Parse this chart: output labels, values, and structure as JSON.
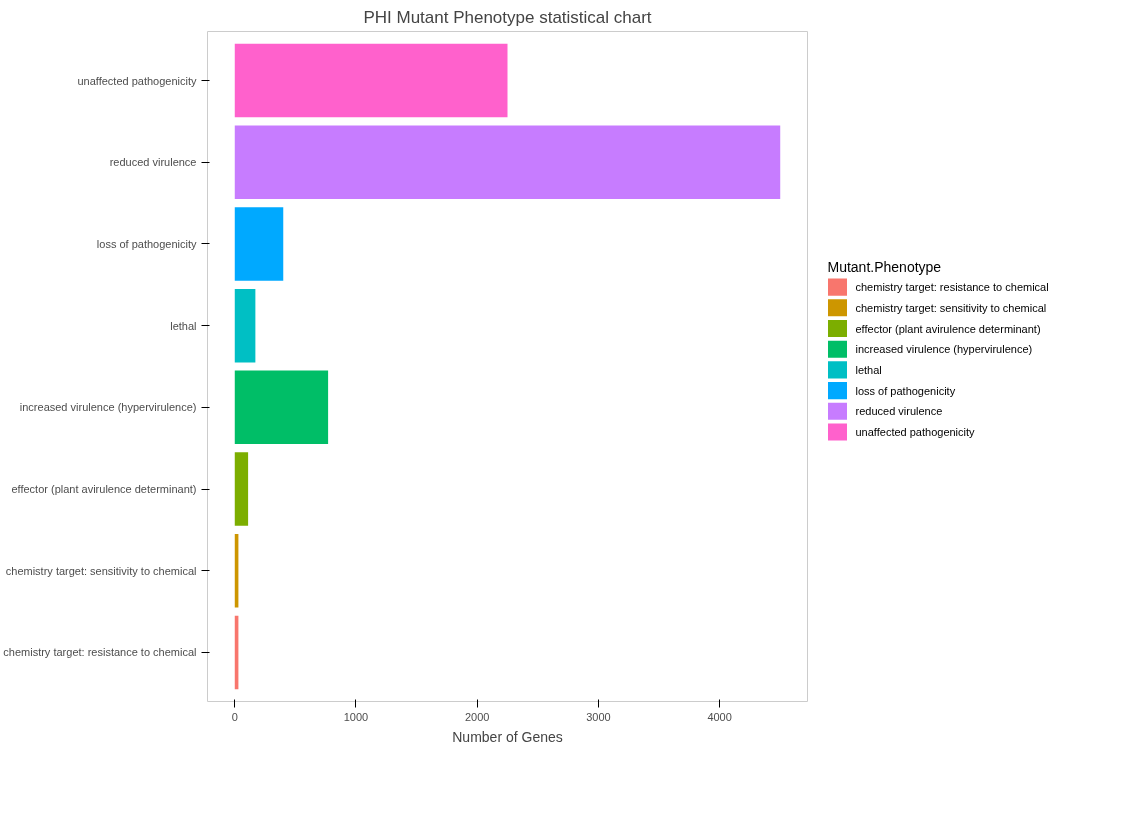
{
  "chart_data": {
    "type": "bar",
    "orientation": "horizontal",
    "title": "PHI Mutant Phenotype statistical chart",
    "xlabel": "Number of Genes",
    "legend_title": "Mutant.Phenotype",
    "categories": [
      "unaffected pathogenicity",
      "reduced virulence",
      "loss of pathogenicity",
      "lethal",
      "increased virulence (hypervirulence)",
      "effector (plant avirulence determinant)",
      "chemistry target: sensitivity to chemical",
      "chemistry target: resistance to chemical"
    ],
    "series": [
      {
        "name": "chemistry target: resistance to chemical",
        "color": "#f8766d",
        "values": [
          null,
          null,
          null,
          null,
          null,
          null,
          null,
          30
        ]
      },
      {
        "name": "chemistry target: sensitivity to chemical",
        "color": "#cd9600",
        "values": [
          null,
          null,
          null,
          null,
          null,
          null,
          30,
          null
        ]
      },
      {
        "name": "effector (plant avirulence determinant)",
        "color": "#7cae00",
        "values": [
          null,
          null,
          null,
          null,
          null,
          110,
          null,
          null
        ]
      },
      {
        "name": "increased virulence (hypervirulence)",
        "color": "#00be67",
        "values": [
          null,
          null,
          null,
          null,
          770,
          null,
          null,
          null
        ]
      },
      {
        "name": "lethal",
        "color": "#00bfc4",
        "values": [
          null,
          null,
          null,
          170,
          null,
          null,
          null,
          null
        ]
      },
      {
        "name": "loss of pathogenicity",
        "color": "#00a9ff",
        "values": [
          null,
          null,
          400,
          null,
          null,
          null,
          null,
          null
        ]
      },
      {
        "name": "reduced virulence",
        "color": "#c77cff",
        "values": [
          null,
          4500,
          null,
          null,
          null,
          null,
          null,
          null
        ]
      },
      {
        "name": "unaffected pathogenicity",
        "color": "#ff61cc",
        "values": [
          2250,
          null,
          null,
          null,
          null,
          null,
          null,
          null
        ]
      }
    ],
    "xlim": [
      -225,
      4725
    ],
    "xticks": [
      0,
      1000,
      2000,
      3000,
      4000
    ],
    "grid": false,
    "legend": "right"
  }
}
